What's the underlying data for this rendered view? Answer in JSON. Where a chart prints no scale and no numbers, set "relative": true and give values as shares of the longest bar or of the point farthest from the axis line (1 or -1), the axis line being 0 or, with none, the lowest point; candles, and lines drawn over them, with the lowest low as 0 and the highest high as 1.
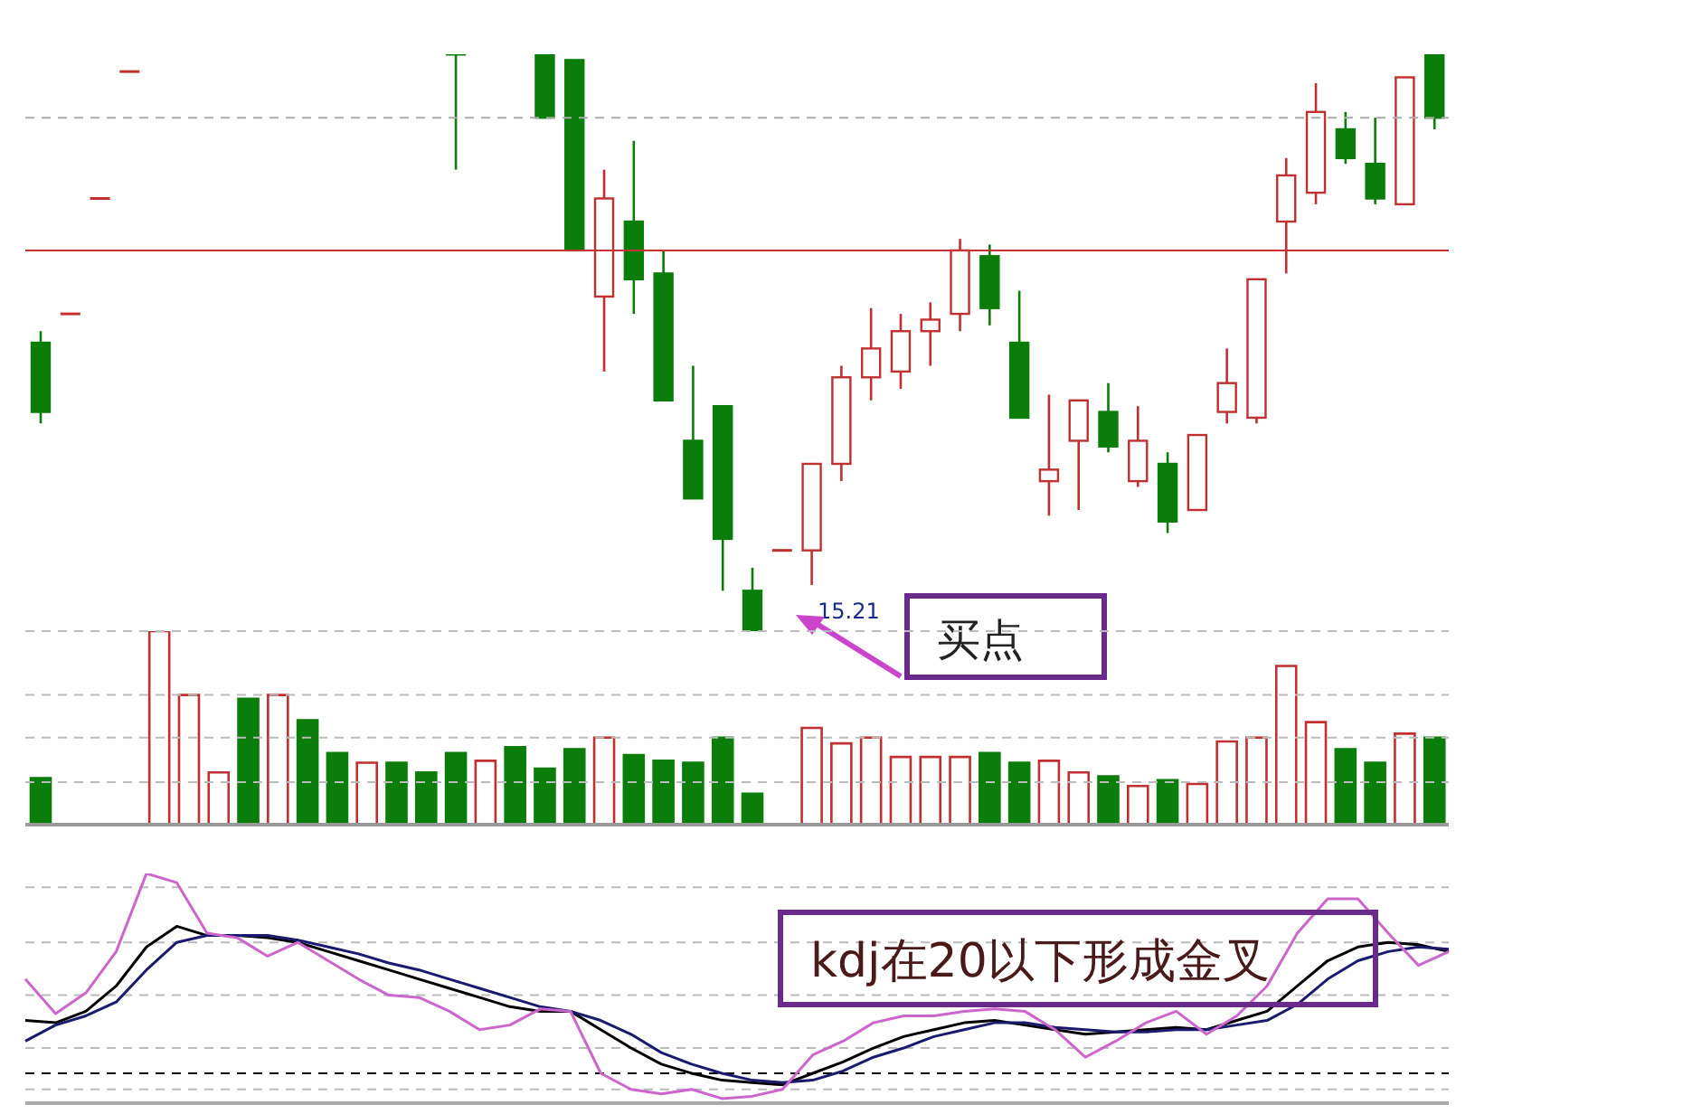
{
  "chart_data": [
    {
      "type": "candlestick",
      "relative": true,
      "categories": [
        null,
        null,
        null,
        null,
        null,
        null,
        null,
        null,
        null,
        null,
        null,
        null,
        null,
        null,
        null,
        null,
        null,
        null,
        null,
        null,
        null,
        null,
        null,
        null,
        null,
        null,
        null,
        null,
        null,
        null,
        null,
        null,
        null,
        null,
        null,
        null,
        null,
        null,
        null,
        null,
        null,
        null,
        null,
        null,
        null,
        null,
        null,
        null
      ],
      "ohlc": [
        [
          0.5,
          0.52,
          0.36,
          0.38
        ],
        [
          0.55,
          0.55,
          0.55,
          0.55
        ],
        [
          0.75,
          0.75,
          0.75,
          0.75
        ],
        [
          0.97,
          0.97,
          0.97,
          0.97
        ],
        null,
        null,
        null,
        null,
        null,
        null,
        null,
        null,
        null,
        null,
        [
          1,
          1,
          0.8,
          1
        ],
        null,
        null,
        [
          1,
          1,
          0.89,
          0.89
        ],
        [
          0.99,
          0.99,
          0.66,
          0.66
        ],
        [
          0.58,
          0.8,
          0.45,
          0.75
        ],
        [
          0.71,
          0.85,
          0.55,
          0.61
        ],
        [
          0.62,
          0.66,
          0.4,
          0.4
        ],
        [
          0.33,
          0.46,
          0.23,
          0.23
        ],
        [
          0.39,
          0.39,
          0.07,
          0.16
        ],
        [
          0.07,
          0.11,
          0,
          0
        ],
        [
          0.14,
          0.14,
          0.14,
          0.14
        ],
        [
          0.14,
          0.29,
          0.08,
          0.29
        ],
        [
          0.29,
          0.46,
          0.26,
          0.44
        ],
        [
          0.44,
          0.56,
          0.4,
          0.49
        ],
        [
          0.45,
          0.55,
          0.42,
          0.52
        ],
        [
          0.52,
          0.57,
          0.46,
          0.54
        ],
        [
          0.55,
          0.68,
          0.52,
          0.66
        ],
        [
          0.65,
          0.67,
          0.53,
          0.56
        ],
        [
          0.5,
          0.59,
          0.37,
          0.37
        ],
        [
          0.26,
          0.41,
          0.2,
          0.28
        ],
        [
          0.33,
          0.4,
          0.21,
          0.4
        ],
        [
          0.38,
          0.43,
          0.31,
          0.32
        ],
        [
          0.26,
          0.39,
          0.25,
          0.33
        ],
        [
          0.29,
          0.31,
          0.17,
          0.19
        ],
        [
          0.21,
          0.34,
          0.21,
          0.34
        ],
        [
          0.38,
          0.49,
          0.36,
          0.43
        ],
        [
          0.37,
          0.61,
          0.36,
          0.61
        ],
        [
          0.71,
          0.82,
          0.62,
          0.79
        ],
        [
          0.76,
          0.95,
          0.74,
          0.9
        ],
        [
          0.87,
          0.9,
          0.81,
          0.82
        ],
        [
          0.81,
          0.89,
          0.74,
          0.75
        ],
        [
          0.74,
          0.96,
          0.74,
          0.96
        ],
        [
          1,
          1,
          0.87,
          0.89
        ]
      ],
      "colors": [
        "#0a7d0a",
        "#c03030",
        "#c03030",
        "#c03030",
        null,
        null,
        null,
        null,
        null,
        null,
        null,
        null,
        null,
        null,
        "#0a7d0a",
        null,
        null,
        "#0a7d0a",
        "#0a7d0a",
        "#c03030",
        "#0a7d0a",
        "#0a7d0a",
        "#0a7d0a",
        "#0a7d0a",
        "#0a7d0a",
        "#c03030",
        "#c03030",
        "#c03030",
        "#c03030",
        "#c03030",
        "#c03030",
        "#c03030",
        "#0a7d0a",
        "#0a7d0a",
        "#c03030",
        "#c03030",
        "#0a7d0a",
        "#c03030",
        "#0a7d0a",
        "#c03030",
        "#c03030",
        "#c03030",
        "#c03030",
        "#c03030",
        "#0a7d0a",
        "#0a7d0a",
        "#c03030",
        "#0a7d0a"
      ],
      "ref_lines": [
        {
          "axis": "y",
          "value": 0.66,
          "color": "#c83232",
          "line_style": "solid"
        },
        {
          "axis": "y",
          "value": 0.89,
          "color": "#aaaaaa",
          "line_style": "dashed"
        }
      ],
      "annotations": [
        "15.21",
        "买点"
      ]
    },
    {
      "type": "bar",
      "relative": true,
      "categories": [
        null,
        null,
        null,
        null,
        null,
        null,
        null,
        null,
        null,
        null,
        null,
        null,
        null,
        null,
        null,
        null,
        null,
        null,
        null,
        null,
        null,
        null,
        null,
        null,
        null,
        null,
        null,
        null,
        null,
        null,
        null,
        null,
        null,
        null,
        null,
        null,
        null,
        null,
        null,
        null,
        null,
        null,
        null,
        null,
        null,
        null,
        null,
        null
      ],
      "values": [
        0.24,
        null,
        null,
        0,
        1.0,
        0.67,
        0.27,
        0.65,
        0.67,
        0.54,
        0.37,
        0.32,
        0.32,
        0.27,
        0.37,
        0.33,
        0.4,
        0.29,
        0.39,
        0.45,
        0.36,
        0.33,
        0.32,
        0.45,
        0.16,
        0,
        0.5,
        0.42,
        0.45,
        0.35,
        0.35,
        0.35,
        0.37,
        0.32,
        0.33,
        0.27,
        0.25,
        0.2,
        0.23,
        0.21,
        0.43,
        0.45,
        0.82,
        0.53,
        0.39,
        0.32,
        0.47,
        0.45
      ],
      "colors": [
        "#0a7d0a",
        null,
        null,
        "#c03030",
        "#c03030",
        "#c03030",
        "#c03030",
        "#0a7d0a",
        "#c03030",
        "#0a7d0a",
        "#0a7d0a",
        "#c03030",
        "#0a7d0a",
        "#0a7d0a",
        "#0a7d0a",
        "#c03030",
        "#0a7d0a",
        "#0a7d0a",
        "#0a7d0a",
        "#c03030",
        "#0a7d0a",
        "#0a7d0a",
        "#0a7d0a",
        "#0a7d0a",
        "#0a7d0a",
        "#c03030",
        "#c03030",
        "#c03030",
        "#c03030",
        "#c03030",
        "#c03030",
        "#c03030",
        "#0a7d0a",
        "#0a7d0a",
        "#c03030",
        "#c03030",
        "#0a7d0a",
        "#c03030",
        "#0a7d0a",
        "#c03030",
        "#c03030",
        "#c03030",
        "#c03030",
        "#c03030",
        "#0a7d0a",
        "#0a7d0a",
        "#c03030",
        "#0a7d0a"
      ],
      "ref_lines": [
        {
          "axis": "y",
          "value": 1.0,
          "color": "#bbbbbb",
          "line_style": "dashed"
        },
        {
          "axis": "y",
          "value": 0.67,
          "color": "#bbbbbb",
          "line_style": "dashed"
        },
        {
          "axis": "y",
          "value": 0.45,
          "color": "#bbbbbb",
          "line_style": "dashed"
        },
        {
          "axis": "y",
          "value": 0.22,
          "color": "#bbbbbb",
          "line_style": "dashed"
        }
      ]
    },
    {
      "type": "line",
      "relative": true,
      "marker": "none",
      "line_style": "solid",
      "categories": [
        null,
        null,
        null,
        null,
        null,
        null,
        null,
        null,
        null,
        null,
        null,
        null,
        null,
        null,
        null,
        null,
        null,
        null,
        null,
        null,
        null,
        null,
        null,
        null,
        null,
        null,
        null,
        null,
        null,
        null,
        null,
        null,
        null,
        null,
        null,
        null,
        null,
        null,
        null,
        null,
        null,
        null,
        null,
        null,
        null,
        null,
        null,
        null
      ],
      "ref_lines": [
        {
          "axis": "y",
          "value": 0.94,
          "color": "#bbbbbb",
          "line_style": "dashed"
        },
        {
          "axis": "y",
          "value": 0.7,
          "color": "#bbbbbb",
          "line_style": "dashed"
        },
        {
          "axis": "y",
          "value": 0.47,
          "color": "#bbbbbb",
          "line_style": "dashed"
        },
        {
          "axis": "y",
          "value": 0.24,
          "color": "#bbbbbb",
          "line_style": "dashed"
        },
        {
          "axis": "y",
          "value": 0.13,
          "color": "#000000",
          "line_style": "dashed"
        },
        {
          "axis": "y",
          "value": 0.06,
          "color": "#bbbbbb",
          "line_style": "dashed"
        }
      ],
      "series": [
        {
          "color": "#000000",
          "values": [
            0.36,
            0.35,
            0.4,
            0.51,
            0.68,
            0.77,
            0.73,
            0.73,
            0.72,
            0.7,
            0.66,
            0.62,
            0.58,
            0.54,
            0.5,
            0.46,
            0.42,
            0.4,
            0.4,
            0.32,
            0.24,
            0.17,
            0.13,
            0.1,
            0.09,
            0.08,
            0.13,
            0.18,
            0.24,
            0.29,
            0.32,
            0.35,
            0.36,
            0.34,
            0.32,
            0.3,
            0.31,
            0.32,
            0.33,
            0.32,
            0.36,
            0.4,
            0.51,
            0.62,
            0.68,
            0.7,
            0.69,
            0.66
          ]
        },
        {
          "color": "#1a1a6e",
          "values": [
            0.27,
            0.34,
            0.38,
            0.44,
            0.58,
            0.7,
            0.73,
            0.73,
            0.73,
            0.71,
            0.68,
            0.65,
            0.61,
            0.58,
            0.54,
            0.5,
            0.46,
            0.42,
            0.4,
            0.36,
            0.3,
            0.22,
            0.17,
            0.13,
            0.1,
            0.09,
            0.1,
            0.14,
            0.2,
            0.24,
            0.29,
            0.32,
            0.35,
            0.35,
            0.33,
            0.32,
            0.31,
            0.31,
            0.32,
            0.32,
            0.34,
            0.36,
            0.43,
            0.54,
            0.62,
            0.66,
            0.68,
            0.67
          ]
        },
        {
          "color": "#cc66cc",
          "values": [
            0.54,
            0.39,
            0.48,
            0.66,
            1,
            0.96,
            0.74,
            0.72,
            0.64,
            0.7,
            0.62,
            0.54,
            0.47,
            0.46,
            0.4,
            0.32,
            0.34,
            0.41,
            0.4,
            0.13,
            0.06,
            0.04,
            0.06,
            0.02,
            0.03,
            0.06,
            0.21,
            0.27,
            0.35,
            0.38,
            0.38,
            0.4,
            0.41,
            0.4,
            0.32,
            0.2,
            0.27,
            0.35,
            0.4,
            0.3,
            0.38,
            0.51,
            0.74,
            0.89,
            0.89,
            0.74,
            0.6,
            0.66
          ]
        }
      ],
      "annotations": [
        "kdj在20以下形成金叉"
      ]
    }
  ]
}
